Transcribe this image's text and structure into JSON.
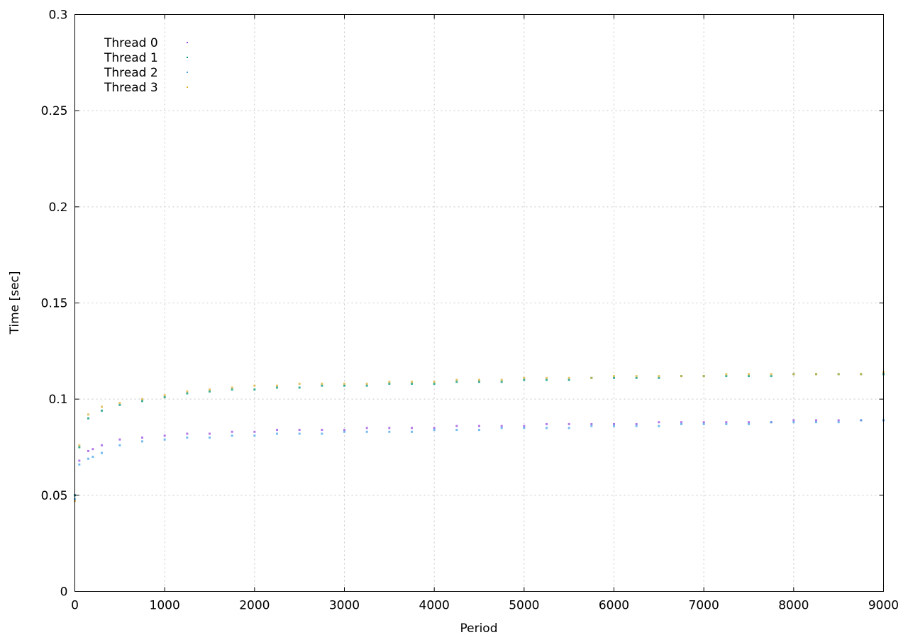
{
  "chart_data": {
    "type": "scatter",
    "title": "",
    "xlabel": "Period",
    "ylabel": "Time [sec]",
    "xlim": [
      0,
      9000
    ],
    "ylim": [
      0,
      0.3
    ],
    "xticks": [
      0,
      1000,
      2000,
      3000,
      4000,
      5000,
      6000,
      7000,
      8000,
      9000
    ],
    "yticks": [
      0,
      0.05,
      0.1,
      0.15,
      0.2,
      0.25,
      0.3
    ],
    "xtick_labels": [
      "0",
      "1000",
      "2000",
      "3000",
      "4000",
      "5000",
      "6000",
      "7000",
      "8000",
      "9000"
    ],
    "ytick_labels": [
      "0",
      "0.05",
      "0.1",
      "0.15",
      "0.2",
      "0.25",
      "0.3"
    ],
    "grid": true,
    "legend_position": "top-left",
    "series": [
      {
        "name": "Thread 0",
        "color": "#9b4fe0",
        "x": [
          0,
          50,
          150,
          200,
          300,
          500,
          750,
          1000,
          1250,
          1500,
          1750,
          2000,
          2250,
          2500,
          2750,
          3000,
          3250,
          3500,
          3750,
          4000,
          4250,
          4500,
          4750,
          5000,
          5250,
          5500,
          5750,
          6000,
          6250,
          6500,
          6750,
          7000,
          7250,
          7500,
          7750,
          8000,
          8250,
          8500,
          8750,
          9000
        ],
        "y": [
          0.05,
          0.068,
          0.073,
          0.074,
          0.076,
          0.079,
          0.08,
          0.081,
          0.082,
          0.082,
          0.083,
          0.083,
          0.084,
          0.084,
          0.084,
          0.084,
          0.085,
          0.085,
          0.085,
          0.085,
          0.086,
          0.086,
          0.086,
          0.086,
          0.087,
          0.087,
          0.087,
          0.087,
          0.087,
          0.088,
          0.088,
          0.088,
          0.088,
          0.088,
          0.088,
          0.089,
          0.089,
          0.089,
          0.089,
          0.089
        ]
      },
      {
        "name": "Thread 1",
        "color": "#00977a",
        "x": [
          0,
          50,
          150,
          300,
          500,
          750,
          1000,
          1250,
          1500,
          1750,
          2000,
          2250,
          2500,
          2750,
          3000,
          3250,
          3500,
          3750,
          4000,
          4250,
          4500,
          4750,
          5000,
          5250,
          5500,
          5750,
          6000,
          6250,
          6500,
          6750,
          7000,
          7250,
          7500,
          7750,
          8000,
          8250,
          8500,
          8750,
          9000
        ],
        "y": [
          0.05,
          0.075,
          0.09,
          0.094,
          0.097,
          0.099,
          0.101,
          0.103,
          0.104,
          0.105,
          0.105,
          0.106,
          0.106,
          0.107,
          0.107,
          0.107,
          0.108,
          0.108,
          0.108,
          0.109,
          0.109,
          0.109,
          0.11,
          0.11,
          0.11,
          0.111,
          0.111,
          0.111,
          0.111,
          0.112,
          0.112,
          0.112,
          0.112,
          0.112,
          0.113,
          0.113,
          0.113,
          0.113,
          0.113
        ]
      },
      {
        "name": "Thread 2",
        "color": "#4aa6e8",
        "x": [
          0,
          50,
          150,
          200,
          300,
          500,
          750,
          1000,
          1250,
          1500,
          1750,
          2000,
          2250,
          2500,
          2750,
          3000,
          3250,
          3500,
          3750,
          4000,
          4250,
          4500,
          4750,
          5000,
          5250,
          5500,
          5750,
          6000,
          6250,
          6500,
          6750,
          7000,
          7250,
          7500,
          7750,
          8000,
          8250,
          8500,
          8750,
          9000
        ],
        "y": [
          0.048,
          0.066,
          0.069,
          0.07,
          0.072,
          0.076,
          0.078,
          0.079,
          0.08,
          0.08,
          0.081,
          0.081,
          0.082,
          0.082,
          0.082,
          0.083,
          0.083,
          0.083,
          0.083,
          0.084,
          0.084,
          0.084,
          0.085,
          0.085,
          0.085,
          0.085,
          0.086,
          0.086,
          0.086,
          0.086,
          0.087,
          0.087,
          0.087,
          0.087,
          0.088,
          0.088,
          0.088,
          0.088,
          0.089,
          0.089
        ]
      },
      {
        "name": "Thread 3",
        "color": "#d9b23a",
        "x": [
          0,
          50,
          150,
          300,
          500,
          750,
          1000,
          1250,
          1500,
          1750,
          2000,
          2250,
          2500,
          2750,
          3000,
          3250,
          3500,
          3750,
          4000,
          4250,
          4500,
          4750,
          5000,
          5250,
          5500,
          5750,
          6000,
          6250,
          6500,
          6750,
          7000,
          7250,
          7500,
          7750,
          8000,
          8250,
          8500,
          8750,
          9000
        ],
        "y": [
          0.047,
          0.076,
          0.092,
          0.096,
          0.098,
          0.1,
          0.102,
          0.104,
          0.105,
          0.106,
          0.107,
          0.107,
          0.108,
          0.108,
          0.108,
          0.108,
          0.109,
          0.109,
          0.109,
          0.11,
          0.11,
          0.11,
          0.111,
          0.111,
          0.111,
          0.111,
          0.112,
          0.112,
          0.112,
          0.112,
          0.112,
          0.113,
          0.113,
          0.113,
          0.113,
          0.113,
          0.113,
          0.113,
          0.114
        ]
      }
    ]
  }
}
